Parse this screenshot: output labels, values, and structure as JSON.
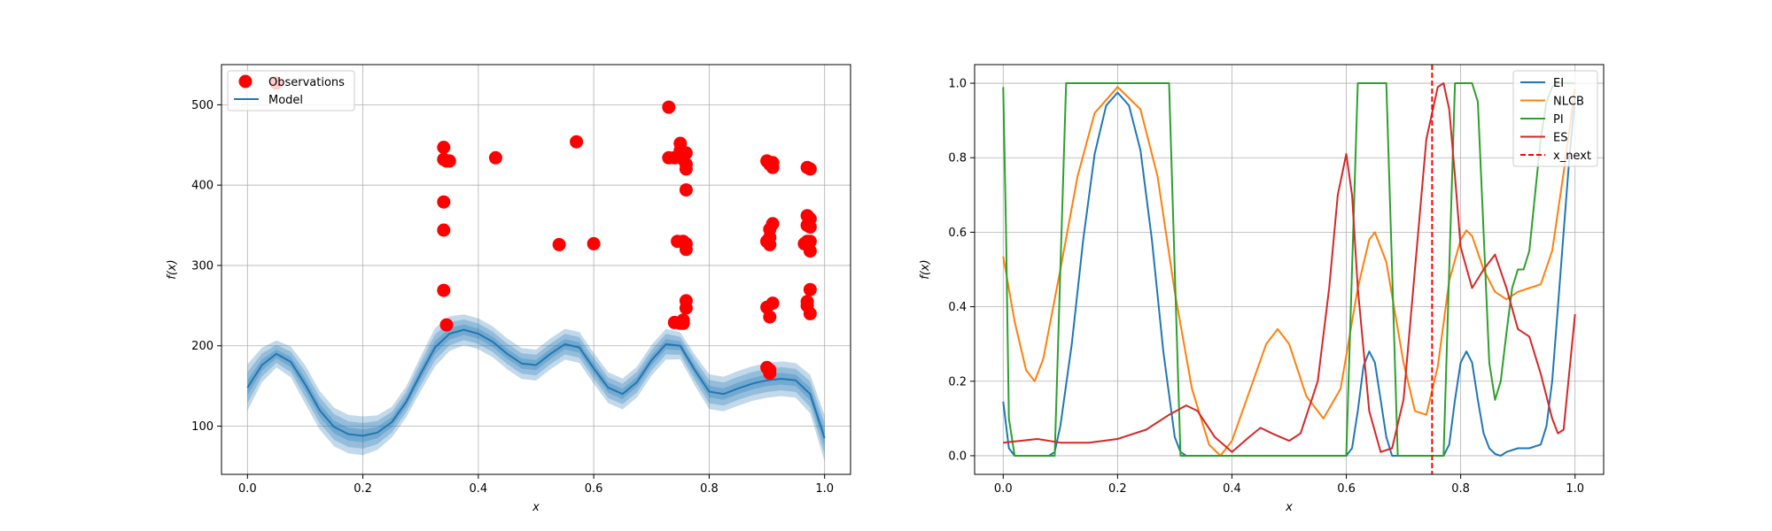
{
  "chart_data": [
    {
      "type": "scatter+line",
      "xlabel": "x",
      "ylabel": "f(x)",
      "xlim": [
        -0.045,
        1.045
      ],
      "ylim": [
        40,
        550
      ],
      "xticks": [
        0.0,
        0.2,
        0.4,
        0.6,
        0.8,
        1.0
      ],
      "xtick_labels": [
        "0.0",
        "0.2",
        "0.4",
        "0.6",
        "0.8",
        "1.0"
      ],
      "yticks": [
        100,
        200,
        300,
        400,
        500
      ],
      "ytick_labels": [
        "100",
        "200",
        "300",
        "400",
        "500"
      ],
      "grid": true,
      "legend": {
        "location": "upper-left",
        "entries": [
          "Observations",
          "Model"
        ]
      },
      "colors": {
        "observations": "#ff0000",
        "model": "#1f77b4"
      },
      "observations": {
        "name": "Observations",
        "x": [
          0.05,
          0.34,
          0.34,
          0.345,
          0.35,
          0.34,
          0.34,
          0.34,
          0.345,
          0.43,
          0.54,
          0.57,
          0.6,
          0.73,
          0.73,
          0.74,
          0.75,
          0.75,
          0.755,
          0.76,
          0.76,
          0.76,
          0.745,
          0.755,
          0.76,
          0.76,
          0.76,
          0.74,
          0.75,
          0.755,
          0.76,
          0.755,
          0.76,
          0.9,
          0.905,
          0.91,
          0.9,
          0.905,
          0.91,
          0.905,
          0.9,
          0.905,
          0.91,
          0.9,
          0.905,
          0.91,
          0.9,
          0.905,
          0.905,
          0.97,
          0.975,
          0.97,
          0.975,
          0.965,
          0.97,
          0.975,
          0.97,
          0.975,
          0.97,
          0.975,
          0.97,
          0.975,
          0.975
        ],
        "y": [
          527,
          447,
          432,
          430,
          430,
          379,
          344,
          269,
          226,
          434,
          326,
          454,
          327,
          497,
          434,
          434,
          452,
          443,
          432,
          426,
          420,
          440,
          330,
          330,
          327,
          320,
          394,
          229,
          228,
          228,
          247,
          232,
          256,
          430,
          426,
          428,
          330,
          335,
          352,
          345,
          330,
          326,
          422,
          248,
          236,
          253,
          173,
          170,
          166,
          422,
          420,
          362,
          358,
          327,
          330,
          318,
          350,
          348,
          250,
          240,
          255,
          270,
          330
        ]
      },
      "model": {
        "name": "Model",
        "x": [
          0.0,
          0.025,
          0.05,
          0.075,
          0.1,
          0.125,
          0.15,
          0.175,
          0.2,
          0.225,
          0.25,
          0.275,
          0.3,
          0.325,
          0.35,
          0.375,
          0.4,
          0.425,
          0.45,
          0.475,
          0.5,
          0.525,
          0.55,
          0.575,
          0.6,
          0.625,
          0.65,
          0.675,
          0.7,
          0.725,
          0.75,
          0.775,
          0.8,
          0.825,
          0.85,
          0.875,
          0.9,
          0.925,
          0.95,
          0.975,
          1.0
        ],
        "mean": [
          148,
          176,
          190,
          180,
          152,
          120,
          99,
          90,
          88,
          92,
          105,
          130,
          165,
          198,
          215,
          220,
          215,
          205,
          190,
          178,
          176,
          190,
          202,
          198,
          172,
          148,
          140,
          155,
          182,
          202,
          200,
          170,
          143,
          140,
          147,
          153,
          157,
          159,
          157,
          140,
          85
        ],
        "band": [
          12,
          9,
          7,
          8,
          10,
          10,
          10,
          10,
          10,
          9,
          8,
          8,
          9,
          10,
          9,
          8,
          8,
          8,
          8,
          8,
          8,
          8,
          8,
          8,
          8,
          8,
          8,
          8,
          8,
          8,
          7,
          8,
          9,
          9,
          9,
          9,
          9,
          9,
          9,
          10,
          12
        ]
      }
    },
    {
      "type": "line",
      "xlabel": "x",
      "ylabel": "f(x)",
      "xlim": [
        -0.05,
        1.05
      ],
      "ylim": [
        -0.05,
        1.05
      ],
      "xticks": [
        0.0,
        0.2,
        0.4,
        0.6,
        0.8,
        1.0
      ],
      "xtick_labels": [
        "0.0",
        "0.2",
        "0.4",
        "0.6",
        "0.8",
        "1.0"
      ],
      "yticks": [
        0.0,
        0.2,
        0.4,
        0.6,
        0.8,
        1.0
      ],
      "ytick_labels": [
        "0.0",
        "0.2",
        "0.4",
        "0.6",
        "0.8",
        "1.0"
      ],
      "grid": true,
      "legend": {
        "location": "upper-right",
        "entries": [
          "EI",
          "NLCB",
          "PI",
          "ES",
          "x_next"
        ]
      },
      "x_next": 0.75,
      "series": [
        {
          "name": "EI",
          "color": "#1f77b4",
          "x": [
            0.0,
            0.01,
            0.02,
            0.05,
            0.08,
            0.09,
            0.1,
            0.12,
            0.14,
            0.16,
            0.18,
            0.2,
            0.22,
            0.24,
            0.26,
            0.28,
            0.3,
            0.31,
            0.32,
            0.6,
            0.61,
            0.62,
            0.63,
            0.64,
            0.65,
            0.66,
            0.67,
            0.68,
            0.69,
            0.77,
            0.78,
            0.79,
            0.8,
            0.81,
            0.82,
            0.83,
            0.84,
            0.85,
            0.86,
            0.87,
            0.88,
            0.9,
            0.92,
            0.94,
            0.95,
            0.96,
            0.97,
            0.98,
            0.99,
            1.0
          ],
          "y": [
            0.145,
            0.02,
            0.0,
            0.0,
            0.0,
            0.01,
            0.08,
            0.3,
            0.58,
            0.81,
            0.94,
            0.975,
            0.94,
            0.82,
            0.58,
            0.28,
            0.05,
            0.01,
            0.0,
            0.0,
            0.02,
            0.12,
            0.24,
            0.28,
            0.25,
            0.15,
            0.05,
            0.0,
            0.0,
            0.0,
            0.03,
            0.15,
            0.25,
            0.28,
            0.25,
            0.15,
            0.06,
            0.02,
            0.005,
            0.0,
            0.01,
            0.02,
            0.02,
            0.03,
            0.08,
            0.2,
            0.4,
            0.6,
            0.8,
            0.96
          ]
        },
        {
          "name": "NLCB",
          "color": "#ff7f0e",
          "x": [
            0.0,
            0.02,
            0.04,
            0.055,
            0.07,
            0.1,
            0.13,
            0.16,
            0.2,
            0.24,
            0.27,
            0.3,
            0.33,
            0.36,
            0.38,
            0.4,
            0.43,
            0.46,
            0.48,
            0.5,
            0.53,
            0.56,
            0.59,
            0.62,
            0.64,
            0.65,
            0.67,
            0.7,
            0.72,
            0.74,
            0.76,
            0.78,
            0.8,
            0.81,
            0.82,
            0.84,
            0.86,
            0.88,
            0.9,
            0.92,
            0.94,
            0.96,
            0.98,
            1.0
          ],
          "y": [
            0.535,
            0.36,
            0.23,
            0.2,
            0.26,
            0.5,
            0.75,
            0.92,
            0.99,
            0.93,
            0.75,
            0.44,
            0.18,
            0.03,
            0.0,
            0.04,
            0.17,
            0.3,
            0.34,
            0.3,
            0.16,
            0.1,
            0.18,
            0.45,
            0.58,
            0.6,
            0.52,
            0.25,
            0.12,
            0.11,
            0.24,
            0.47,
            0.58,
            0.605,
            0.59,
            0.5,
            0.44,
            0.42,
            0.44,
            0.45,
            0.46,
            0.55,
            0.76,
            0.985
          ]
        },
        {
          "name": "PI",
          "color": "#2ca02c",
          "x": [
            0.0,
            0.005,
            0.01,
            0.02,
            0.09,
            0.1,
            0.11,
            0.29,
            0.3,
            0.31,
            0.6,
            0.61,
            0.62,
            0.67,
            0.68,
            0.69,
            0.77,
            0.78,
            0.79,
            0.82,
            0.83,
            0.84,
            0.85,
            0.86,
            0.87,
            0.88,
            0.89,
            0.9,
            0.91,
            0.92,
            0.93,
            0.94,
            0.95,
            0.96,
            0.97,
            0.98,
            0.99,
            1.0
          ],
          "y": [
            0.99,
            0.6,
            0.1,
            0.0,
            0.0,
            0.5,
            1.0,
            1.0,
            0.5,
            0.0,
            0.0,
            0.5,
            1.0,
            1.0,
            0.5,
            0.0,
            0.0,
            0.5,
            1.0,
            1.0,
            0.95,
            0.6,
            0.25,
            0.15,
            0.2,
            0.33,
            0.45,
            0.5,
            0.5,
            0.55,
            0.7,
            0.85,
            0.95,
            0.99,
            1.0,
            1.0,
            1.0,
            1.0
          ]
        },
        {
          "name": "ES",
          "color": "#d62728",
          "x": [
            0.0,
            0.03,
            0.06,
            0.1,
            0.15,
            0.2,
            0.25,
            0.29,
            0.32,
            0.34,
            0.37,
            0.4,
            0.43,
            0.45,
            0.47,
            0.5,
            0.52,
            0.55,
            0.57,
            0.585,
            0.6,
            0.61,
            0.62,
            0.64,
            0.66,
            0.68,
            0.7,
            0.72,
            0.74,
            0.76,
            0.77,
            0.78,
            0.79,
            0.8,
            0.82,
            0.84,
            0.86,
            0.88,
            0.9,
            0.92,
            0.94,
            0.96,
            0.97,
            0.98,
            1.0
          ],
          "y": [
            0.035,
            0.04,
            0.045,
            0.035,
            0.035,
            0.045,
            0.07,
            0.11,
            0.135,
            0.12,
            0.05,
            0.01,
            0.05,
            0.075,
            0.06,
            0.04,
            0.06,
            0.2,
            0.45,
            0.7,
            0.81,
            0.7,
            0.45,
            0.12,
            0.01,
            0.02,
            0.15,
            0.5,
            0.85,
            0.99,
            1.0,
            0.93,
            0.75,
            0.56,
            0.45,
            0.5,
            0.54,
            0.45,
            0.34,
            0.32,
            0.22,
            0.1,
            0.06,
            0.07,
            0.38
          ]
        }
      ]
    }
  ]
}
